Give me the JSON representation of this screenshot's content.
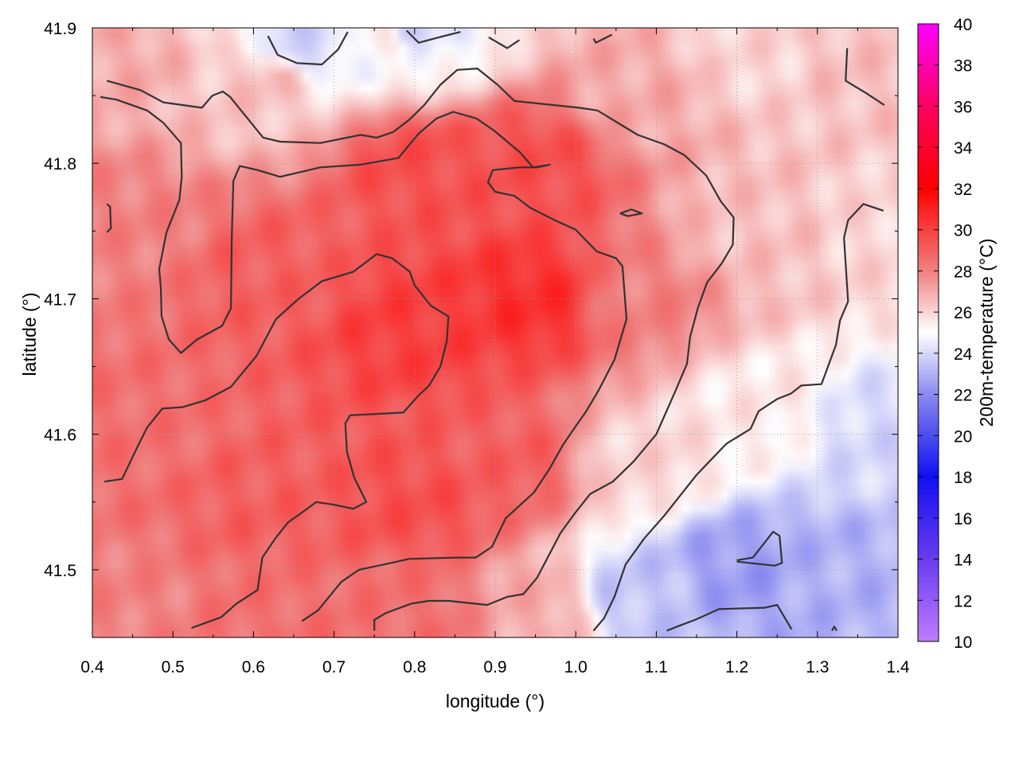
{
  "chart_data": {
    "type": "heatmap",
    "title": "",
    "xlabel": "longitude (°)",
    "ylabel": "latitude (°)",
    "xlim": [
      0.4,
      1.4
    ],
    "ylim": [
      41.45,
      41.9
    ],
    "x_ticks": [
      0.4,
      0.5,
      0.6,
      0.7,
      0.8,
      0.9,
      1.0,
      1.1,
      1.2,
      1.3,
      1.4
    ],
    "x_tick_labels": [
      "0.4",
      "0.5",
      "0.6",
      "0.7",
      "0.8",
      "0.9",
      "1.0",
      "1.1",
      "1.2",
      "1.3",
      "1.4"
    ],
    "y_ticks": [
      41.5,
      41.6,
      41.7,
      41.8,
      41.9
    ],
    "y_tick_labels": [
      "41.5",
      "41.6",
      "41.7",
      "41.8",
      "41.9"
    ],
    "grid": true,
    "colorbar": {
      "label": "200m-temperature (°C)",
      "range": [
        10,
        40
      ],
      "ticks": [
        10,
        12,
        14,
        16,
        18,
        20,
        22,
        24,
        26,
        28,
        30,
        32,
        34,
        36,
        38,
        40
      ],
      "tick_labels": [
        "10",
        "12",
        "14",
        "16",
        "18",
        "20",
        "22",
        "24",
        "26",
        "28",
        "30",
        "32",
        "34",
        "36",
        "38",
        "40"
      ],
      "stops": [
        {
          "value": 10,
          "color": "#c07cff"
        },
        {
          "value": 14,
          "color": "#6a3cf0"
        },
        {
          "value": 18,
          "color": "#1010f0"
        },
        {
          "value": 22,
          "color": "#8a8af0"
        },
        {
          "value": 25,
          "color": "#ffffff"
        },
        {
          "value": 28,
          "color": "#f08080"
        },
        {
          "value": 32,
          "color": "#ff0000"
        },
        {
          "value": 36,
          "color": "#ff0060"
        },
        {
          "value": 40,
          "color": "#ff00ff"
        }
      ]
    },
    "field_control_points": [
      {
        "lon": 0.42,
        "lat": 41.88,
        "temp": 27.0
      },
      {
        "lon": 0.45,
        "lat": 41.75,
        "temp": 28.0
      },
      {
        "lon": 0.45,
        "lat": 41.6,
        "temp": 28.5
      },
      {
        "lon": 0.45,
        "lat": 41.47,
        "temp": 28.0
      },
      {
        "lon": 0.62,
        "lat": 41.86,
        "temp": 26.5
      },
      {
        "lon": 0.62,
        "lat": 41.72,
        "temp": 29.0
      },
      {
        "lon": 0.62,
        "lat": 41.55,
        "temp": 29.0
      },
      {
        "lon": 0.62,
        "lat": 41.47,
        "temp": 28.5
      },
      {
        "lon": 0.78,
        "lat": 41.89,
        "temp": 25.5
      },
      {
        "lon": 0.8,
        "lat": 41.8,
        "temp": 29.5
      },
      {
        "lon": 0.8,
        "lat": 41.68,
        "temp": 30.0
      },
      {
        "lon": 0.8,
        "lat": 41.55,
        "temp": 29.5
      },
      {
        "lon": 0.8,
        "lat": 41.47,
        "temp": 28.5
      },
      {
        "lon": 0.95,
        "lat": 41.8,
        "temp": 29.5
      },
      {
        "lon": 0.95,
        "lat": 41.7,
        "temp": 30.5
      },
      {
        "lon": 0.92,
        "lat": 41.58,
        "temp": 29.0
      },
      {
        "lon": 0.95,
        "lat": 41.47,
        "temp": 27.0
      },
      {
        "lon": 1.08,
        "lat": 41.85,
        "temp": 27.0
      },
      {
        "lon": 1.08,
        "lat": 41.7,
        "temp": 28.0
      },
      {
        "lon": 1.08,
        "lat": 41.58,
        "temp": 26.0
      },
      {
        "lon": 1.08,
        "lat": 41.48,
        "temp": 23.5
      },
      {
        "lon": 1.22,
        "lat": 41.88,
        "temp": 26.0
      },
      {
        "lon": 1.22,
        "lat": 41.75,
        "temp": 26.5
      },
      {
        "lon": 1.22,
        "lat": 41.62,
        "temp": 25.5
      },
      {
        "lon": 1.2,
        "lat": 41.5,
        "temp": 22.5
      },
      {
        "lon": 1.35,
        "lat": 41.88,
        "temp": 26.5
      },
      {
        "lon": 1.38,
        "lat": 41.75,
        "temp": 26.0
      },
      {
        "lon": 1.38,
        "lat": 41.6,
        "temp": 24.0
      },
      {
        "lon": 1.32,
        "lat": 41.5,
        "temp": 23.0
      },
      {
        "lon": 0.79,
        "lat": 41.895,
        "temp": 24.0
      },
      {
        "lon": 0.66,
        "lat": 41.885,
        "temp": 24.0
      }
    ],
    "contours": [
      {
        "name": "contour-upper-left-band",
        "points": [
          [
            0.418,
            41.861
          ],
          [
            0.46,
            41.854
          ],
          [
            0.488,
            41.845
          ],
          [
            0.536,
            41.841
          ],
          [
            0.549,
            41.85
          ],
          [
            0.562,
            41.853
          ],
          [
            0.571,
            41.849
          ],
          [
            0.612,
            41.819
          ],
          [
            0.633,
            41.816
          ],
          [
            0.683,
            41.815
          ],
          [
            0.733,
            41.821
          ],
          [
            0.753,
            41.819
          ],
          [
            0.773,
            41.823
          ],
          [
            0.793,
            41.832
          ],
          [
            0.812,
            41.843
          ],
          [
            0.832,
            41.858
          ],
          [
            0.853,
            41.869
          ],
          [
            0.878,
            41.87
          ],
          [
            0.903,
            41.858
          ],
          [
            0.924,
            41.846
          ],
          [
            1.004,
            41.841
          ],
          [
            1.027,
            41.839
          ],
          [
            1.077,
            41.821
          ],
          [
            1.11,
            41.814
          ],
          [
            1.135,
            41.806
          ],
          [
            1.162,
            41.791
          ],
          [
            1.18,
            41.772
          ],
          [
            1.196,
            41.76
          ],
          [
            1.195,
            41.74
          ],
          [
            1.181,
            41.726
          ],
          [
            1.163,
            41.712
          ],
          [
            1.152,
            41.694
          ],
          [
            1.142,
            41.672
          ],
          [
            1.138,
            41.652
          ],
          [
            1.123,
            41.631
          ],
          [
            1.1,
            41.6
          ],
          [
            1.072,
            41.58
          ],
          [
            1.046,
            41.565
          ],
          [
            1.018,
            41.556
          ],
          [
            0.998,
            41.541
          ],
          [
            0.981,
            41.527
          ],
          [
            0.952,
            41.494
          ],
          [
            0.935,
            41.482
          ],
          [
            0.915,
            41.48
          ],
          [
            0.89,
            41.474
          ],
          [
            0.842,
            41.477
          ],
          [
            0.818,
            41.477
          ],
          [
            0.796,
            41.475
          ],
          [
            0.764,
            41.468
          ],
          [
            0.75,
            41.463
          ],
          [
            0.75,
            41.455
          ]
        ]
      },
      {
        "name": "contour-warm-core",
        "points": [
          [
            0.41,
            41.849
          ],
          [
            0.43,
            41.847
          ],
          [
            0.468,
            41.839
          ],
          [
            0.488,
            41.83
          ],
          [
            0.51,
            41.815
          ],
          [
            0.511,
            41.79
          ],
          [
            0.508,
            41.773
          ],
          [
            0.492,
            41.749
          ],
          [
            0.483,
            41.722
          ],
          [
            0.485,
            41.708
          ],
          [
            0.486,
            41.687
          ],
          [
            0.495,
            41.67
          ],
          [
            0.51,
            41.66
          ],
          [
            0.53,
            41.67
          ],
          [
            0.561,
            41.68
          ],
          [
            0.572,
            41.693
          ],
          [
            0.573,
            41.744
          ],
          [
            0.575,
            41.787
          ],
          [
            0.583,
            41.798
          ],
          [
            0.605,
            41.795
          ],
          [
            0.633,
            41.79
          ],
          [
            0.683,
            41.797
          ],
          [
            0.733,
            41.799
          ],
          [
            0.78,
            41.804
          ],
          [
            0.805,
            41.822
          ],
          [
            0.827,
            41.833
          ],
          [
            0.848,
            41.838
          ],
          [
            0.877,
            41.833
          ],
          [
            0.899,
            41.824
          ],
          [
            0.931,
            41.808
          ],
          [
            0.947,
            41.797
          ],
          [
            0.968,
            41.799
          ],
          [
            0.952,
            41.797
          ],
          [
            0.93,
            41.797
          ],
          [
            0.897,
            41.795
          ],
          [
            0.891,
            41.786
          ],
          [
            0.9,
            41.779
          ],
          [
            0.924,
            41.776
          ],
          [
            0.944,
            41.767
          ],
          [
            0.974,
            41.758
          ],
          [
            1.0,
            41.751
          ],
          [
            1.026,
            41.735
          ],
          [
            1.05,
            41.73
          ],
          [
            1.058,
            41.724
          ],
          [
            1.063,
            41.685
          ],
          [
            1.048,
            41.655
          ],
          [
            1.028,
            41.632
          ],
          [
            1.012,
            41.616
          ],
          [
            1.0,
            41.606
          ],
          [
            0.984,
            41.592
          ],
          [
            0.967,
            41.574
          ],
          [
            0.948,
            41.557
          ],
          [
            0.913,
            41.538
          ],
          [
            0.896,
            41.517
          ],
          [
            0.876,
            41.509
          ],
          [
            0.851,
            41.509
          ],
          [
            0.793,
            41.508
          ],
          [
            0.763,
            41.504
          ],
          [
            0.731,
            41.5
          ],
          [
            0.709,
            41.491
          ],
          [
            0.68,
            41.47
          ],
          [
            0.66,
            41.462
          ]
        ]
      },
      {
        "name": "contour-inner-lobe",
        "points": [
          [
            0.415,
            41.565
          ],
          [
            0.437,
            41.567
          ],
          [
            0.457,
            41.592
          ],
          [
            0.468,
            41.605
          ],
          [
            0.487,
            41.619
          ],
          [
            0.512,
            41.62
          ],
          [
            0.54,
            41.625
          ],
          [
            0.572,
            41.635
          ],
          [
            0.604,
            41.658
          ],
          [
            0.628,
            41.685
          ],
          [
            0.656,
            41.7
          ],
          [
            0.685,
            41.713
          ],
          [
            0.724,
            41.72
          ],
          [
            0.753,
            41.733
          ],
          [
            0.772,
            41.73
          ],
          [
            0.794,
            41.72
          ],
          [
            0.8,
            41.71
          ],
          [
            0.82,
            41.695
          ],
          [
            0.842,
            41.687
          ],
          [
            0.84,
            41.669
          ],
          [
            0.832,
            41.65
          ],
          [
            0.818,
            41.636
          ],
          [
            0.804,
            41.628
          ],
          [
            0.786,
            41.616
          ],
          [
            0.753,
            41.615
          ],
          [
            0.72,
            41.614
          ],
          [
            0.714,
            41.608
          ],
          [
            0.716,
            41.587
          ],
          [
            0.725,
            41.568
          ],
          [
            0.74,
            41.55
          ],
          [
            0.724,
            41.545
          ],
          [
            0.7,
            41.548
          ],
          [
            0.678,
            41.55
          ],
          [
            0.662,
            41.543
          ],
          [
            0.643,
            41.535
          ],
          [
            0.627,
            41.523
          ],
          [
            0.611,
            41.509
          ],
          [
            0.605,
            41.485
          ],
          [
            0.579,
            41.475
          ],
          [
            0.56,
            41.465
          ],
          [
            0.523,
            41.457
          ]
        ]
      },
      {
        "name": "contour-left-edge",
        "points": [
          [
            0.418,
            41.77
          ],
          [
            0.422,
            41.768
          ],
          [
            0.423,
            41.752
          ],
          [
            0.418,
            41.749
          ]
        ]
      },
      {
        "name": "contour-top-left-loop",
        "points": [
          [
            0.618,
            41.894
          ],
          [
            0.63,
            41.88
          ],
          [
            0.654,
            41.874
          ],
          [
            0.685,
            41.873
          ],
          [
            0.705,
            41.884
          ],
          [
            0.717,
            41.897
          ]
        ]
      },
      {
        "name": "contour-top-fragment-a",
        "points": [
          [
            0.79,
            41.898
          ],
          [
            0.805,
            41.889
          ],
          [
            0.83,
            41.893
          ],
          [
            0.857,
            41.897
          ]
        ]
      },
      {
        "name": "contour-top-fragment-b",
        "points": [
          [
            0.892,
            41.893
          ],
          [
            0.915,
            41.885
          ],
          [
            0.93,
            41.891
          ]
        ]
      },
      {
        "name": "contour-top-fragment-c",
        "points": [
          [
            1.022,
            41.892
          ],
          [
            1.025,
            41.889
          ],
          [
            1.045,
            41.895
          ]
        ]
      },
      {
        "name": "contour-top-right",
        "points": [
          [
            1.337,
            41.885
          ],
          [
            1.335,
            41.861
          ],
          [
            1.36,
            41.852
          ],
          [
            1.383,
            41.843
          ]
        ]
      },
      {
        "name": "contour-small-loop",
        "points": [
          [
            1.055,
            41.763
          ],
          [
            1.069,
            41.766
          ],
          [
            1.082,
            41.763
          ],
          [
            1.065,
            41.761
          ],
          [
            1.055,
            41.763
          ]
        ]
      },
      {
        "name": "contour-cool-boundary",
        "points": [
          [
            1.022,
            41.455
          ],
          [
            1.035,
            41.464
          ],
          [
            1.048,
            41.48
          ],
          [
            1.062,
            41.504
          ],
          [
            1.085,
            41.523
          ],
          [
            1.11,
            41.54
          ],
          [
            1.15,
            41.57
          ],
          [
            1.187,
            41.593
          ],
          [
            1.217,
            41.604
          ],
          [
            1.227,
            41.617
          ],
          [
            1.25,
            41.626
          ],
          [
            1.267,
            41.63
          ],
          [
            1.28,
            41.636
          ],
          [
            1.305,
            41.637
          ],
          [
            1.323,
            41.666
          ],
          [
            1.328,
            41.684
          ],
          [
            1.338,
            41.698
          ],
          [
            1.333,
            41.745
          ],
          [
            1.338,
            41.758
          ],
          [
            1.357,
            41.77
          ],
          [
            1.382,
            41.765
          ]
        ]
      },
      {
        "name": "contour-cold-loop",
        "points": [
          [
            1.2,
            41.507
          ],
          [
            1.22,
            41.509
          ],
          [
            1.245,
            41.528
          ],
          [
            1.253,
            41.525
          ],
          [
            1.256,
            41.505
          ],
          [
            1.247,
            41.503
          ],
          [
            1.2,
            41.506
          ]
        ]
      },
      {
        "name": "contour-bottom-right",
        "points": [
          [
            1.113,
            41.455
          ],
          [
            1.13,
            41.459
          ],
          [
            1.148,
            41.463
          ],
          [
            1.178,
            41.471
          ],
          [
            1.235,
            41.472
          ],
          [
            1.25,
            41.474
          ],
          [
            1.268,
            41.456
          ]
        ]
      },
      {
        "name": "contour-bottom-tip",
        "points": [
          [
            1.318,
            41.455
          ],
          [
            1.321,
            41.458
          ],
          [
            1.324,
            41.455
          ]
        ]
      }
    ]
  }
}
